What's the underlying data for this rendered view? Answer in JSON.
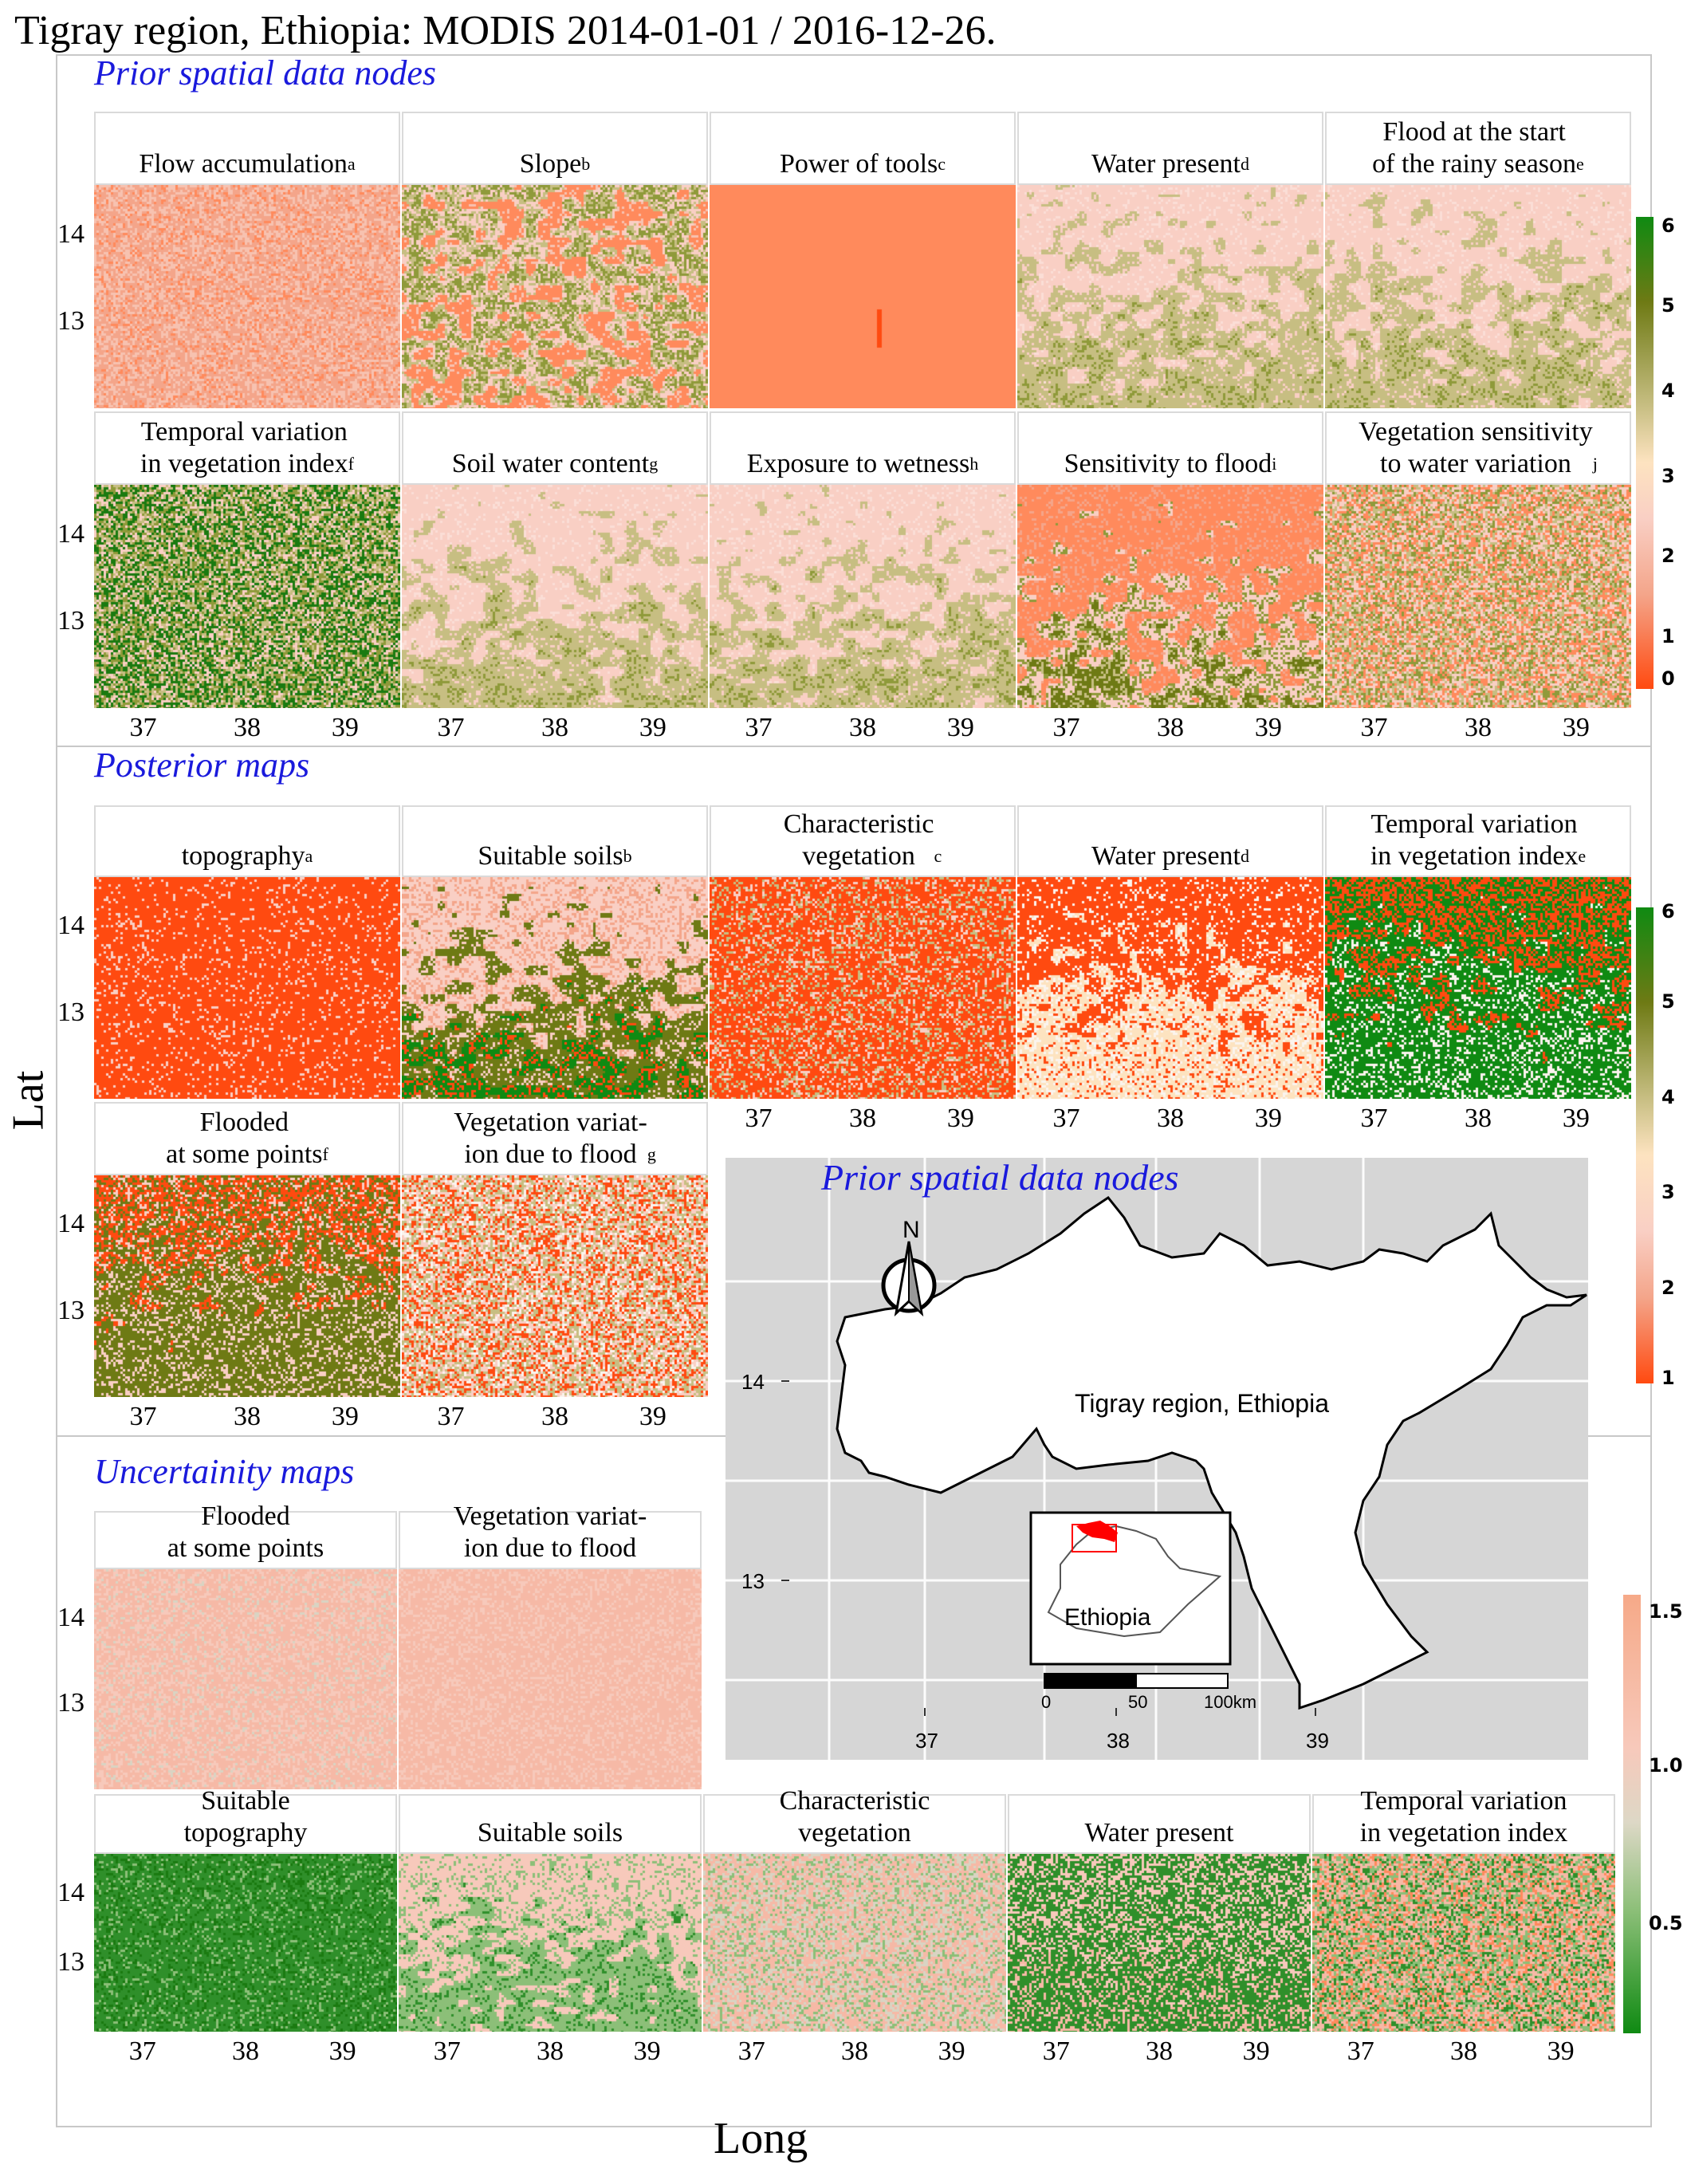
{
  "title": "Tigray region, Ethiopia: MODIS 2014-01-01 / 2016-12-26.",
  "axis": {
    "xlabel": "Long",
    "ylabel": "Lat",
    "xticks": [
      "37",
      "38",
      "39"
    ],
    "yticks": [
      "14",
      "13"
    ]
  },
  "sections": {
    "prior": {
      "title": "Prior spatial data nodes",
      "panels": [
        {
          "label": "Flow accumulation",
          "sup": "a",
          "scheme": "speckle"
        },
        {
          "label": "Slope",
          "sup": "b",
          "scheme": "slope"
        },
        {
          "label": "Power of tools",
          "sup": "c",
          "scheme": "flat"
        },
        {
          "label": "Water present",
          "sup": "d",
          "scheme": "olivepink"
        },
        {
          "label": "Flood at the start\nof the rainy season",
          "sup": "e",
          "scheme": "olivepink"
        },
        {
          "label": "Temporal variation\nin vegetation index",
          "sup": "f",
          "scheme": "greenmix"
        },
        {
          "label": "Soil water content",
          "sup": "g",
          "scheme": "olivepink"
        },
        {
          "label": "Exposure to wetness",
          "sup": "h",
          "scheme": "olivepink"
        },
        {
          "label": "Sensitivity to flood",
          "sup": "i",
          "scheme": "redolive"
        },
        {
          "label": "Vegetation sensitivity\nto water variation",
          "sup": "j",
          "scheme": "mixpink"
        }
      ],
      "legend": {
        "ticks": [
          "6",
          "5",
          "4",
          "3",
          "2",
          "1",
          "0"
        ]
      }
    },
    "posterior": {
      "title": "Posterior maps",
      "panels": [
        {
          "label": "topography",
          "sup": "a",
          "scheme": "redtopo"
        },
        {
          "label": "Suitable soils",
          "sup": "b",
          "scheme": "soils"
        },
        {
          "label": "Characteristic\nvegetation",
          "sup": "c",
          "scheme": "redveg"
        },
        {
          "label": "Water present",
          "sup": "d",
          "scheme": "redwater"
        },
        {
          "label": "Temporal variation\nin vegetation index",
          "sup": "e",
          "scheme": "greenred"
        },
        {
          "label": "Flooded\nat some points",
          "sup": "f",
          "scheme": "floodedpost"
        },
        {
          "label": "Vegetation variat-\nion due to flood",
          "sup": "g",
          "scheme": "noise"
        }
      ],
      "legend": {
        "ticks": [
          "6",
          "5",
          "4",
          "3",
          "2",
          "1"
        ]
      }
    },
    "uncertainty": {
      "title": "Uncertainity maps",
      "panels": [
        {
          "label": "Flooded\nat some points",
          "sup": "",
          "scheme": "unc-pink"
        },
        {
          "label": "Vegetation variat-\nion due to flood",
          "sup": "",
          "scheme": "unc-salmon"
        },
        {
          "label": "Suitable\ntopography",
          "sup": "",
          "scheme": "unc-green"
        },
        {
          "label": "Suitable soils",
          "sup": "",
          "scheme": "unc-soil"
        },
        {
          "label": "Characteristic\nvegetation",
          "sup": "",
          "scheme": "unc-pinkmix"
        },
        {
          "label": "Water present",
          "sup": "",
          "scheme": "unc-water"
        },
        {
          "label": "Temporal variation\nin vegetation index",
          "sup": "",
          "scheme": "unc-mix"
        }
      ],
      "legend": {
        "ticks": [
          "1.5",
          "1.0",
          "0.5"
        ]
      }
    }
  },
  "inset": {
    "title": "Prior spatial data nodes",
    "north": "N",
    "region_label": "Tigray region, Ethiopia",
    "country_label": "Ethiopia",
    "xticks": [
      "37",
      "38",
      "39"
    ],
    "yticks": [
      "14",
      "13"
    ],
    "scalebar": [
      "0",
      "50",
      "100km"
    ]
  },
  "colors": {
    "section_title": "#1a1adc",
    "inset_bg": "#d6d6d6",
    "highlight": "#ff0000"
  }
}
